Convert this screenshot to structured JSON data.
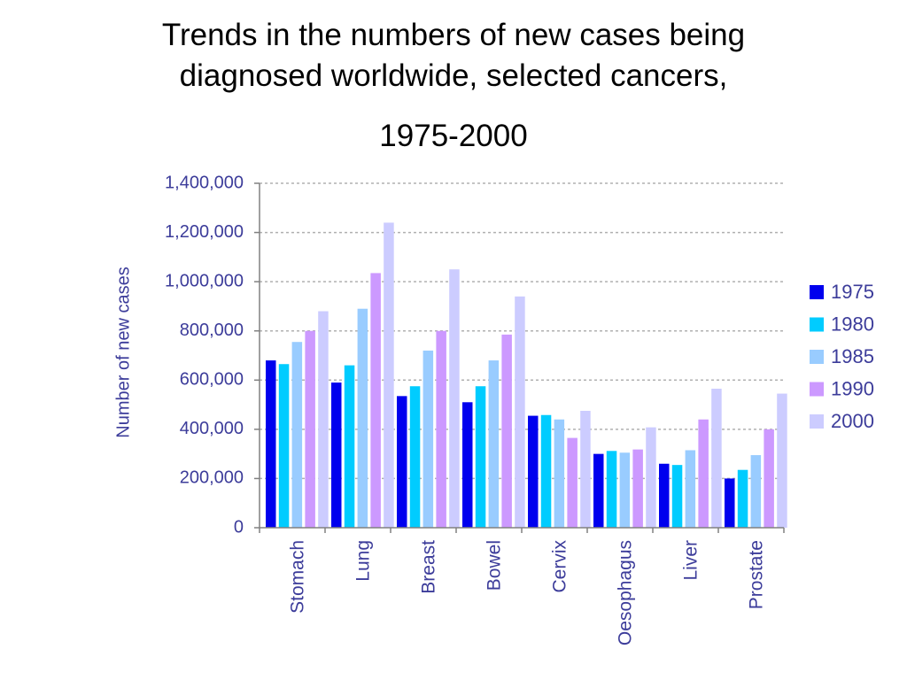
{
  "title_lines": [
    "Trends in the numbers of new cases being",
    "diagnosed worldwide, selected cancers,",
    "1975-2000"
  ],
  "chart_data": {
    "type": "bar",
    "title": "Trends in the numbers of new cases being diagnosed worldwide, selected cancers, 1975-2000",
    "ylabel": "Number of new cases",
    "xlabel": "",
    "ylim": [
      0,
      1400000
    ],
    "yticks": [
      0,
      200000,
      400000,
      600000,
      800000,
      1000000,
      1200000,
      1400000
    ],
    "ytick_labels": [
      "0",
      "200,000",
      "400,000",
      "600,000",
      "800,000",
      "1,000,000",
      "1,200,000",
      "1,400,000"
    ],
    "grid": true,
    "legend_position": "right",
    "categories": [
      "Stomach",
      "Lung",
      "Breast",
      "Bowel",
      "Cervix",
      "Oesophagus",
      "Liver",
      "Prostate"
    ],
    "series": [
      {
        "name": "1975",
        "color": "#0000ee",
        "values": [
          680000,
          590000,
          535000,
          510000,
          455000,
          300000,
          260000,
          200000
        ]
      },
      {
        "name": "1980",
        "color": "#00ccff",
        "values": [
          665000,
          660000,
          575000,
          575000,
          458000,
          312000,
          255000,
          235000
        ]
      },
      {
        "name": "1985",
        "color": "#99ccff",
        "values": [
          755000,
          890000,
          720000,
          680000,
          440000,
          305000,
          315000,
          295000
        ]
      },
      {
        "name": "1990",
        "color": "#cc99ff",
        "values": [
          800000,
          1035000,
          800000,
          785000,
          365000,
          318000,
          440000,
          400000
        ]
      },
      {
        "name": "2000",
        "color": "#ccccff",
        "values": [
          880000,
          1240000,
          1050000,
          940000,
          475000,
          408000,
          565000,
          545000
        ]
      }
    ]
  }
}
